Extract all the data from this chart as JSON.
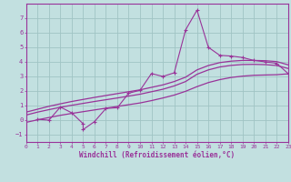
{
  "xlabel": "Windchill (Refroidissement éolien,°C)",
  "xlim": [
    0,
    23
  ],
  "ylim": [
    -1.5,
    8.0
  ],
  "yticks": [
    -1,
    0,
    1,
    2,
    3,
    4,
    5,
    6,
    7
  ],
  "xticks": [
    0,
    1,
    2,
    3,
    4,
    5,
    6,
    7,
    8,
    9,
    10,
    11,
    12,
    13,
    14,
    15,
    16,
    17,
    18,
    19,
    20,
    21,
    22,
    23
  ],
  "bg_color": "#c2e0e0",
  "grid_color": "#a0c4c4",
  "line_color": "#993399",
  "scatter_x": [
    1,
    2,
    3,
    4,
    5,
    5,
    6,
    7,
    8,
    9,
    10,
    11,
    12,
    13,
    14,
    15,
    16,
    17,
    18,
    19,
    20,
    21,
    22,
    23
  ],
  "scatter_y": [
    0.05,
    0.0,
    0.9,
    0.5,
    -0.25,
    -0.65,
    -0.1,
    0.8,
    0.85,
    1.85,
    2.05,
    3.2,
    3.0,
    3.25,
    6.2,
    7.55,
    5.0,
    4.45,
    4.4,
    4.3,
    4.1,
    4.0,
    3.9,
    3.2
  ],
  "c1x": [
    0,
    1,
    2,
    3,
    4,
    5,
    6,
    7,
    8,
    9,
    10,
    11,
    12,
    13,
    14,
    15,
    16,
    17,
    18,
    19,
    20,
    21,
    22,
    23
  ],
  "c1y": [
    0.55,
    0.75,
    0.95,
    1.12,
    1.28,
    1.42,
    1.56,
    1.69,
    1.82,
    1.95,
    2.08,
    2.25,
    2.42,
    2.65,
    2.95,
    3.45,
    3.75,
    3.95,
    4.05,
    4.1,
    4.1,
    4.08,
    4.02,
    3.8
  ],
  "c2x": [
    0,
    1,
    2,
    3,
    4,
    5,
    6,
    7,
    8,
    9,
    10,
    11,
    12,
    13,
    14,
    15,
    16,
    17,
    18,
    19,
    20,
    21,
    22,
    23
  ],
  "c2y": [
    0.35,
    0.55,
    0.72,
    0.88,
    1.02,
    1.15,
    1.28,
    1.4,
    1.52,
    1.65,
    1.78,
    1.95,
    2.12,
    2.35,
    2.65,
    3.15,
    3.45,
    3.65,
    3.76,
    3.82,
    3.83,
    3.81,
    3.75,
    3.55
  ],
  "c3x": [
    0,
    1,
    2,
    3,
    4,
    5,
    6,
    7,
    8,
    9,
    10,
    11,
    12,
    13,
    14,
    15,
    16,
    17,
    18,
    19,
    20,
    21,
    22,
    23
  ],
  "c3y": [
    -0.15,
    0.02,
    0.18,
    0.33,
    0.46,
    0.58,
    0.7,
    0.82,
    0.94,
    1.06,
    1.18,
    1.34,
    1.52,
    1.72,
    1.98,
    2.3,
    2.58,
    2.78,
    2.93,
    3.02,
    3.08,
    3.1,
    3.12,
    3.18
  ]
}
